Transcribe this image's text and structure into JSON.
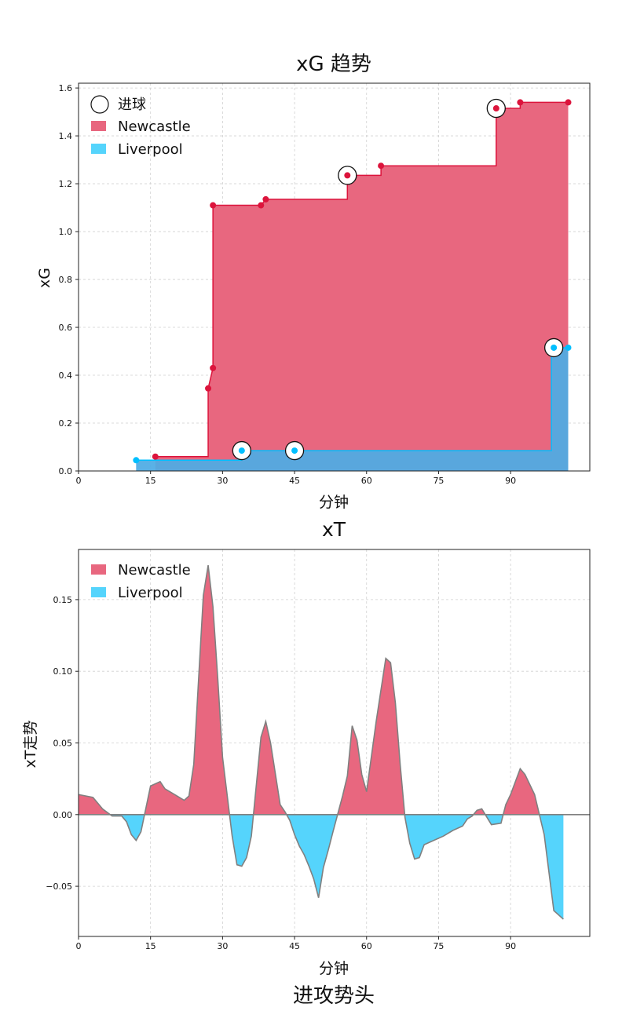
{
  "chart_data": [
    {
      "type": "area",
      "title": "xG 趋势",
      "xlabel": "分钟",
      "ylabel": "xG",
      "xlim": [
        0,
        106.5
      ],
      "ylim": [
        0,
        1.62
      ],
      "xticks": [
        0,
        15,
        30,
        45,
        60,
        75,
        90
      ],
      "yticks": [
        "0.0",
        "0.2",
        "0.4",
        "0.6",
        "0.8",
        "1.0",
        "1.2",
        "1.4",
        "1.6"
      ],
      "grid": true,
      "legend_position": "top-left",
      "legend": [
        "进球",
        "Newcastle",
        "Liverpool"
      ],
      "series": [
        {
          "name": "Newcastle",
          "color": "#e8677f",
          "line_color": "#dc143c",
          "points": [
            [
              16,
              0.06
            ],
            [
              27,
              0.06
            ],
            [
              27,
              0.345
            ],
            [
              28,
              0.43
            ],
            [
              28,
              1.11
            ],
            [
              38,
              1.11
            ],
            [
              39,
              1.135
            ],
            [
              56,
              1.135
            ],
            [
              56,
              1.235
            ],
            [
              63,
              1.235
            ],
            [
              63,
              1.275
            ],
            [
              87,
              1.275
            ],
            [
              87,
              1.515
            ],
            [
              92,
              1.515
            ],
            [
              92,
              1.54
            ],
            [
              102,
              1.54
            ]
          ],
          "shots": [
            [
              16,
              0.06
            ],
            [
              27,
              0.345
            ],
            [
              28,
              0.43
            ],
            [
              28,
              1.11
            ],
            [
              38,
              1.11
            ],
            [
              39,
              1.135
            ],
            [
              56,
              1.235
            ],
            [
              63,
              1.275
            ],
            [
              87,
              1.515
            ],
            [
              92,
              1.54
            ],
            [
              102,
              1.54
            ]
          ],
          "goals": [
            [
              56,
              1.235
            ],
            [
              87,
              1.515
            ]
          ]
        },
        {
          "name": "Liverpool",
          "color": "#55d4fc",
          "line_color": "#00bfff",
          "points": [
            [
              12,
              0.045
            ],
            [
              34,
              0.045
            ],
            [
              34,
              0.085
            ],
            [
              98.5,
              0.085
            ],
            [
              98.5,
              0.515
            ],
            [
              102,
              0.515
            ]
          ],
          "shots": [
            [
              12,
              0.045
            ],
            [
              34,
              0.085
            ],
            [
              45,
              0.085
            ],
            [
              99,
              0.515
            ],
            [
              102,
              0.515
            ]
          ],
          "goals": [
            [
              34,
              0.085
            ],
            [
              45,
              0.085
            ],
            [
              99,
              0.515
            ]
          ]
        }
      ]
    },
    {
      "type": "area",
      "title": "xT",
      "xlabel": "分钟",
      "ylabel": "xT走势",
      "xlim": [
        0,
        106.5
      ],
      "ylim": [
        -0.085,
        0.185
      ],
      "xticks": [
        0,
        15,
        30,
        45,
        60,
        75,
        90
      ],
      "yticks": [
        "−0.05",
        "0.00",
        "0.05",
        "0.10",
        "0.15"
      ],
      "grid": true,
      "legend_position": "top-left",
      "legend": [
        "Newcastle",
        "Liverpool"
      ],
      "positive_series": "Newcastle",
      "negative_series": "Liverpool",
      "positive_color": "#e8677f",
      "negative_color": "#55d4fc",
      "x": [
        0,
        3,
        5,
        7,
        9,
        10,
        11,
        12,
        13,
        15,
        17,
        18,
        20,
        22,
        23,
        24,
        26,
        27,
        28,
        29,
        30,
        32,
        33,
        34,
        35,
        36,
        38,
        39,
        40,
        42,
        43,
        44,
        45,
        46,
        47,
        48,
        49,
        50,
        51,
        52,
        53,
        55,
        56,
        57,
        58,
        59,
        60,
        62,
        64,
        65,
        66,
        67,
        68,
        69,
        70,
        71,
        72,
        74,
        76,
        78,
        80,
        81,
        82,
        83,
        84,
        86,
        88,
        89,
        90,
        92,
        93,
        95,
        97,
        99,
        101
      ],
      "values": [
        0.014,
        0.012,
        0.004,
        -0.001,
        -0.001,
        -0.005,
        -0.014,
        -0.018,
        -0.012,
        0.02,
        0.023,
        0.018,
        0.014,
        0.01,
        0.013,
        0.035,
        0.153,
        0.174,
        0.145,
        0.095,
        0.04,
        -0.015,
        -0.035,
        -0.036,
        -0.03,
        -0.015,
        0.054,
        0.065,
        0.05,
        0.007,
        0.002,
        -0.004,
        -0.014,
        -0.022,
        -0.028,
        -0.036,
        -0.045,
        -0.058,
        -0.037,
        -0.025,
        -0.012,
        0.013,
        0.027,
        0.062,
        0.052,
        0.028,
        0.016,
        0.065,
        0.109,
        0.106,
        0.078,
        0.035,
        -0.002,
        -0.02,
        -0.031,
        -0.03,
        -0.021,
        -0.018,
        -0.015,
        -0.011,
        -0.008,
        -0.003,
        -0.001,
        0.003,
        0.004,
        -0.007,
        -0.006,
        0.007,
        0.014,
        0.032,
        0.028,
        0.014,
        -0.014,
        -0.067,
        -0.073
      ]
    }
  ],
  "footer": {
    "caption": "进攻势头"
  }
}
